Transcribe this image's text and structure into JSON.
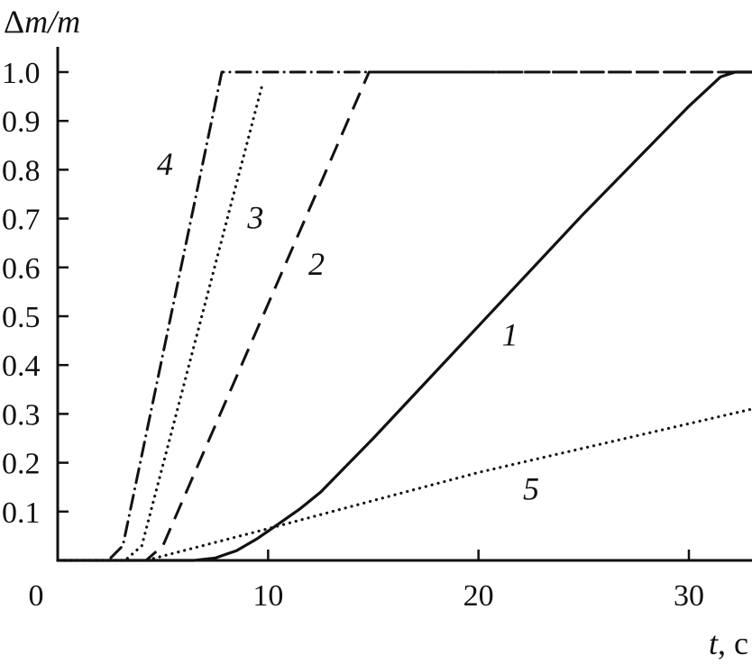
{
  "chart_data": {
    "type": "line",
    "title": "",
    "ylabel": {
      "symbol": "Δm/m",
      "prefix": "Δ",
      "m1": "m",
      "slash": "/",
      "m2": "m"
    },
    "xlabel": {
      "var": "t",
      "unit": ", c"
    },
    "xlim": [
      0,
      33
    ],
    "ylim": [
      0,
      1.0
    ],
    "xticks": [
      10,
      20,
      30
    ],
    "xtick_labels": [
      "10",
      "20",
      "30"
    ],
    "origin_label": "0",
    "yticks": [
      0.1,
      0.2,
      0.3,
      0.4,
      0.5,
      0.6,
      0.7,
      0.8,
      0.9,
      1.0
    ],
    "ytick_labels": [
      "0.1",
      "0.2",
      "0.3",
      "0.4",
      "0.5",
      "0.6",
      "0.7",
      "0.8",
      "0.9",
      "1.0"
    ],
    "grid": false,
    "legend": "none",
    "series": [
      {
        "label": "1",
        "style": "solid",
        "label_pos": {
          "x": 21.5,
          "y": 0.44
        },
        "x": [
          0,
          6.5,
          7.5,
          8.5,
          9.5,
          10.5,
          11.5,
          12.5,
          15,
          20,
          25,
          30,
          31.5,
          32.2,
          33
        ],
        "y": [
          0,
          0,
          0.005,
          0.02,
          0.045,
          0.075,
          0.105,
          0.14,
          0.25,
          0.48,
          0.71,
          0.93,
          0.99,
          1.0,
          1.0
        ]
      },
      {
        "label": "2",
        "style": "dashed",
        "label_pos": {
          "x": 12.3,
          "y": 0.585
        },
        "x": [
          0,
          4.2,
          5.0,
          14.8,
          33
        ],
        "y": [
          0,
          0,
          0.03,
          1.0,
          1.0
        ]
      },
      {
        "label": "3",
        "style": "dotted",
        "label_pos": {
          "x": 9.4,
          "y": 0.68
        },
        "x": [
          0,
          3.2,
          4.0,
          9.7
        ],
        "y": [
          0,
          0,
          0.03,
          0.97
        ]
      },
      {
        "label": "4",
        "style": "dashdot",
        "label_pos": {
          "x": 5.1,
          "y": 0.79
        },
        "x": [
          0,
          2.4,
          3.1,
          7.8,
          33
        ],
        "y": [
          0,
          0,
          0.03,
          1.0,
          1.0
        ]
      },
      {
        "label": "5",
        "style": "dotted",
        "label_pos": {
          "x": 22.5,
          "y": 0.125
        },
        "x": [
          0,
          4.2,
          10,
          20,
          33
        ],
        "y": [
          0,
          0,
          0.065,
          0.18,
          0.31
        ]
      }
    ]
  }
}
